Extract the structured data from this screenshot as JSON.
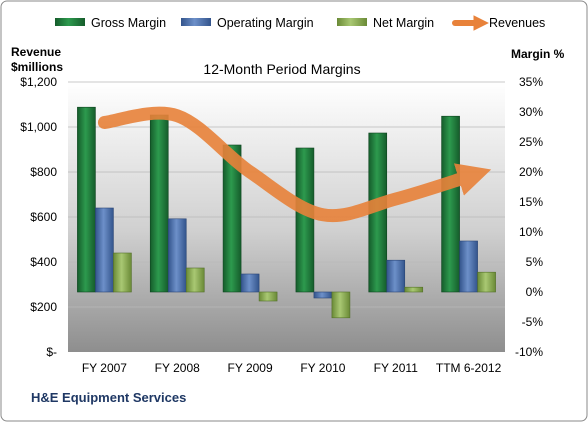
{
  "chart_data": {
    "type": "bar",
    "title": "12-Month Period Margins",
    "ylabel_left": "Revenue $millions",
    "ylabel_right": "Margin %",
    "footer": "H&E Equipment Services",
    "categories": [
      "FY 2007",
      "FY 2008",
      "FY 2009",
      "FY 2010",
      "FY 2011",
      "TTM 6-2012"
    ],
    "left_axis": {
      "ylim": [
        0,
        1200
      ],
      "ticks": [
        "$-",
        "$200",
        "$400",
        "$600",
        "$800",
        "$1,000",
        "$1,200"
      ]
    },
    "right_axis": {
      "ylim": [
        -10,
        35
      ],
      "ticks": [
        "-10%",
        "-5%",
        "0%",
        "5%",
        "10%",
        "15%",
        "20%",
        "25%",
        "30%",
        "35%"
      ]
    },
    "series": [
      {
        "name": "Gross Margin",
        "axis": "right",
        "color": "#1f7a3c",
        "values": [
          30.8,
          29.5,
          24.5,
          24.0,
          26.5,
          29.3
        ]
      },
      {
        "name": "Operating Margin",
        "axis": "right",
        "color": "#4a6fae",
        "values": [
          14.0,
          12.2,
          3.0,
          -1.0,
          5.3,
          8.5
        ]
      },
      {
        "name": "Net Margin",
        "axis": "right",
        "color": "#8db052",
        "values": [
          6.5,
          4.0,
          -1.5,
          -4.3,
          0.8,
          3.3
        ]
      },
      {
        "name": "Revenues",
        "axis": "left",
        "color": "#e8823a",
        "values": [
          1020,
          1050,
          800,
          610,
          680,
          780
        ]
      }
    ],
    "legend": [
      "Gross Margin",
      "Operating Margin",
      "Net Margin",
      "Revenues"
    ],
    "legend_position": "top",
    "grid": true
  }
}
